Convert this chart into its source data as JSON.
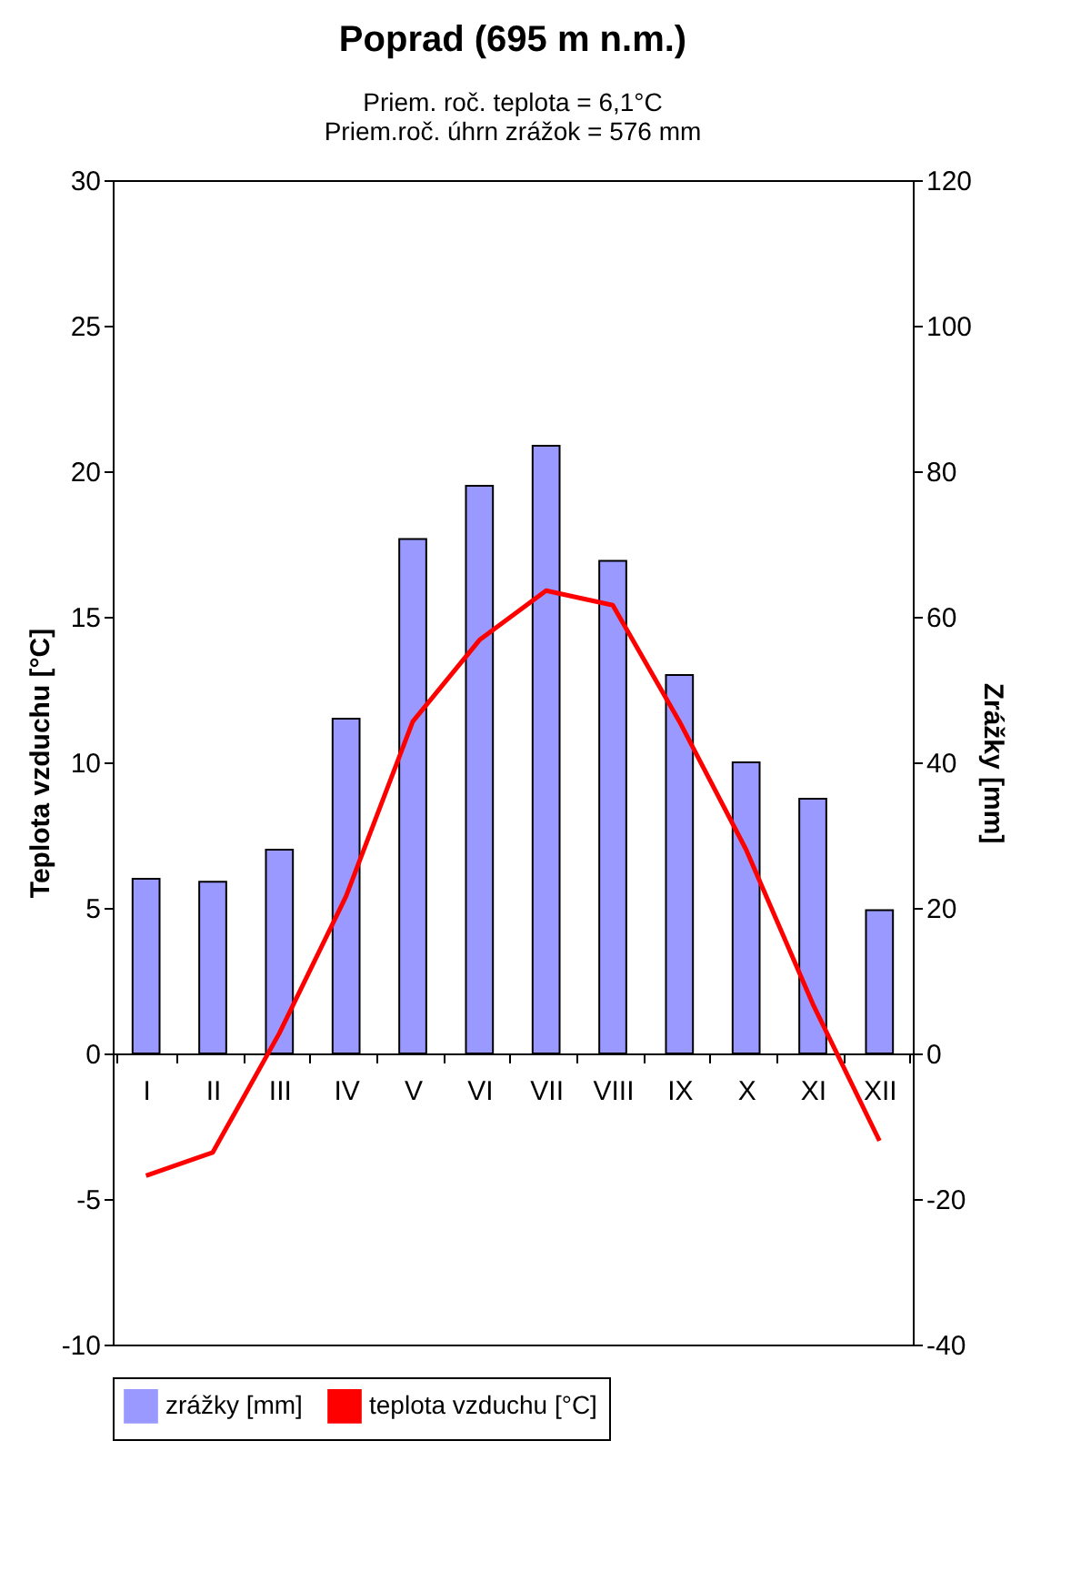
{
  "chart_data": {
    "type": "bar",
    "title": "Poprad (695 m n.m.)",
    "annotations": [
      "Priem. roč. teplota = 6,1°C",
      "Priem.roč. úhrn zrážok = 576 mm"
    ],
    "ylabel": "Teplota vzduchu [°C]",
    "y2label": "Zrážky [mm]",
    "categories": [
      "I",
      "II",
      "III",
      "IV",
      "V",
      "VI",
      "VII",
      "VIII",
      "IX",
      "X",
      "XI",
      "XII"
    ],
    "series": [
      {
        "name": "zrážky [mm]",
        "axis": "y2",
        "color": "#9999ff",
        "values": [
          24,
          23.6,
          28,
          46,
          70.7,
          78,
          83.5,
          67.7,
          52,
          40,
          35,
          19.7
        ]
      },
      {
        "name": "teplota vzduchu [°C]",
        "type": "line",
        "color": "#ff0000",
        "values": [
          -4.2,
          -3.4,
          0.7,
          5.4,
          11.4,
          14.2,
          15.9,
          15.4,
          11.4,
          7.0,
          1.7,
          -3.0
        ]
      }
    ],
    "ylim": [
      -10,
      30
    ],
    "yticks": [
      -10,
      -5,
      0,
      5,
      10,
      15,
      20,
      25,
      30
    ],
    "y2lim": [
      -40,
      120
    ],
    "y2ticks": [
      -40,
      -20,
      0,
      20,
      40,
      60,
      80,
      100,
      120
    ],
    "grid": false,
    "legend": "bottom"
  }
}
